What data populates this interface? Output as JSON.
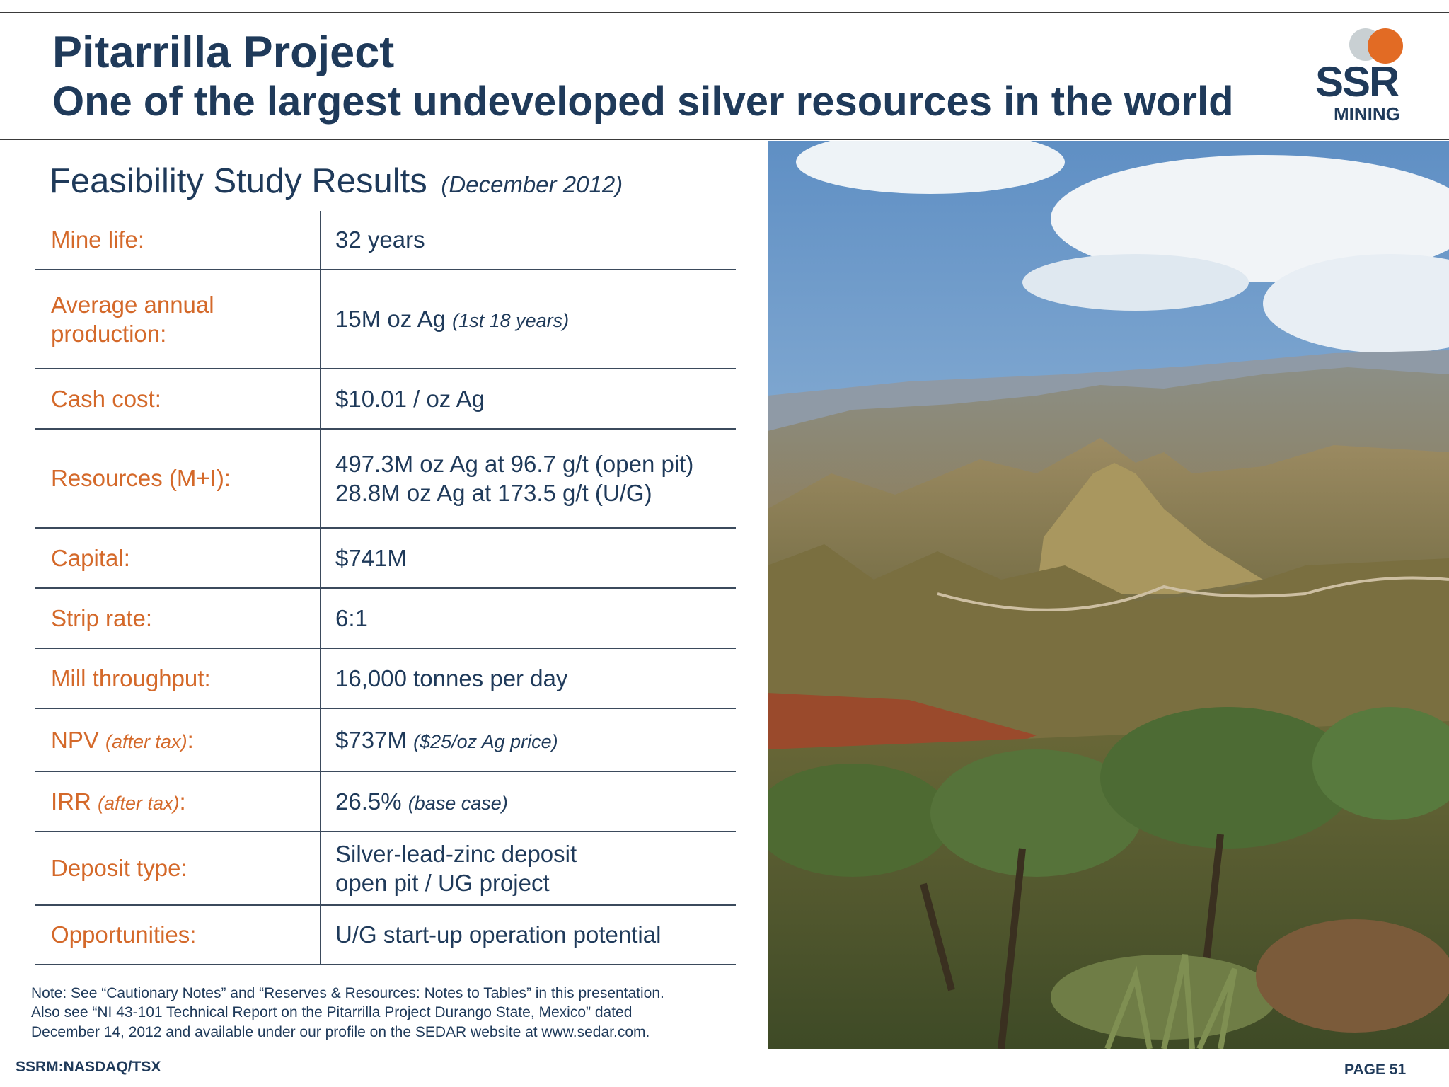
{
  "header": {
    "title": "Pitarrilla Project",
    "subtitle": "One of the largest undeveloped silver resources in the world"
  },
  "logo": {
    "text_main": "SSR",
    "text_sub": "MINING",
    "accent_color": "#e26b24",
    "secondary_color": "#c9d0d3"
  },
  "section": {
    "title": "Feasibility Study Results",
    "date": "(December 2012)"
  },
  "rows": [
    {
      "label": "Mine life:",
      "value": "32 years"
    },
    {
      "label_line1": "Average annual",
      "label_line2": "production:",
      "value": "15M oz Ag",
      "value_note": "(1st 18 years)"
    },
    {
      "label": "Cash cost:",
      "value": "$10.01 / oz Ag"
    },
    {
      "label": "Resources (M+I):",
      "value_line1": "497.3M oz Ag at 96.7 g/t (open pit)",
      "value_line2": "28.8M oz Ag at 173.5 g/t (U/G)"
    },
    {
      "label": "Capital:",
      "value": "$741M"
    },
    {
      "label": "Strip rate:",
      "value": "6:1"
    },
    {
      "label": "Mill throughput:",
      "value": "16,000 tonnes per day"
    },
    {
      "label": "NPV",
      "label_note": "(after tax)",
      "label_suffix": ":",
      "value": "$737M",
      "value_note": "($25/oz Ag price)"
    },
    {
      "label": "IRR",
      "label_note": "(after tax)",
      "label_suffix": ":",
      "value": "26.5%",
      "value_note": "(base case)"
    },
    {
      "label": "Deposit type:",
      "value_line1": "Silver-lead-zinc deposit",
      "value_line2": "open pit / UG project"
    },
    {
      "label": "Opportunities:",
      "value": "U/G start-up operation potential"
    }
  ],
  "note": {
    "line1": "Note: See “Cautionary Notes” and “Reserves & Resources: Notes to Tables” in this presentation.",
    "line2": "Also see “NI 43-101 Technical Report on the Pitarrilla Project Durango State, Mexico” dated",
    "line3": "December 14, 2012 and available under our profile on the SEDAR website at www.sedar.com."
  },
  "footer": {
    "ticker": "SSRM:NASDAQ/TSX",
    "page": "PAGE 51"
  },
  "colors": {
    "label": "#d4692a",
    "text": "#1f3a5a"
  }
}
